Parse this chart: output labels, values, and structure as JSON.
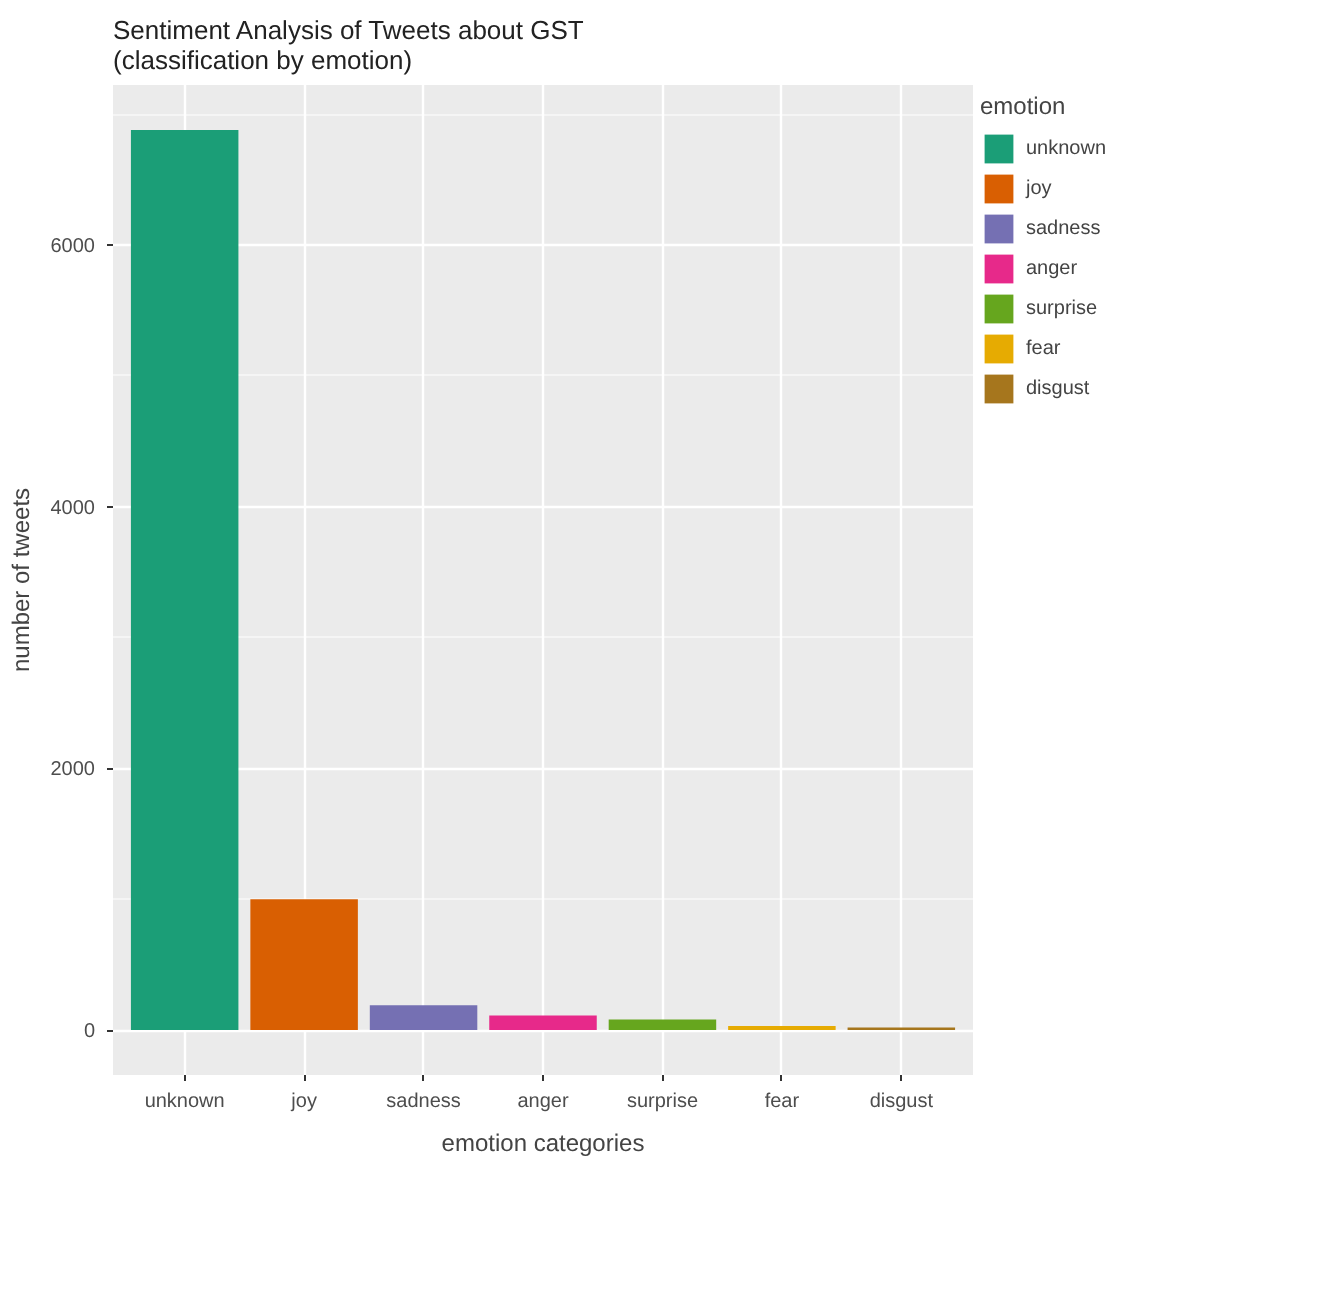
{
  "chart_data": {
    "type": "bar",
    "title": "Sentiment Analysis of Tweets about GST\n(classification by emotion)",
    "xlabel": "emotion categories",
    "ylabel": "number of tweets",
    "legend_title": "emotion",
    "categories": [
      "unknown",
      "joy",
      "sadness",
      "anger",
      "surprise",
      "fear",
      "disgust"
    ],
    "series": [
      {
        "name": "unknown",
        "color": "#1b9e77",
        "values": [
          6880,
          null,
          null,
          null,
          null,
          null,
          null
        ]
      },
      {
        "name": "joy",
        "color": "#d95f02",
        "values": [
          null,
          1000,
          null,
          null,
          null,
          null,
          null
        ]
      },
      {
        "name": "sadness",
        "color": "#7570b3",
        "values": [
          null,
          null,
          190,
          null,
          null,
          null,
          null
        ]
      },
      {
        "name": "anger",
        "color": "#e7298a",
        "values": [
          null,
          null,
          null,
          110,
          null,
          null,
          null
        ]
      },
      {
        "name": "surprise",
        "color": "#66a61e",
        "values": [
          null,
          null,
          null,
          null,
          80,
          null,
          null
        ]
      },
      {
        "name": "fear",
        "color": "#e6ab02",
        "values": [
          null,
          null,
          null,
          null,
          null,
          30,
          null
        ]
      },
      {
        "name": "disgust",
        "color": "#a6761d",
        "values": [
          null,
          null,
          null,
          null,
          null,
          null,
          20
        ]
      }
    ],
    "ylim": [
      -344,
      7224
    ],
    "yticks": [
      0,
      2000,
      4000,
      6000
    ],
    "grid": true,
    "legend": "right"
  }
}
